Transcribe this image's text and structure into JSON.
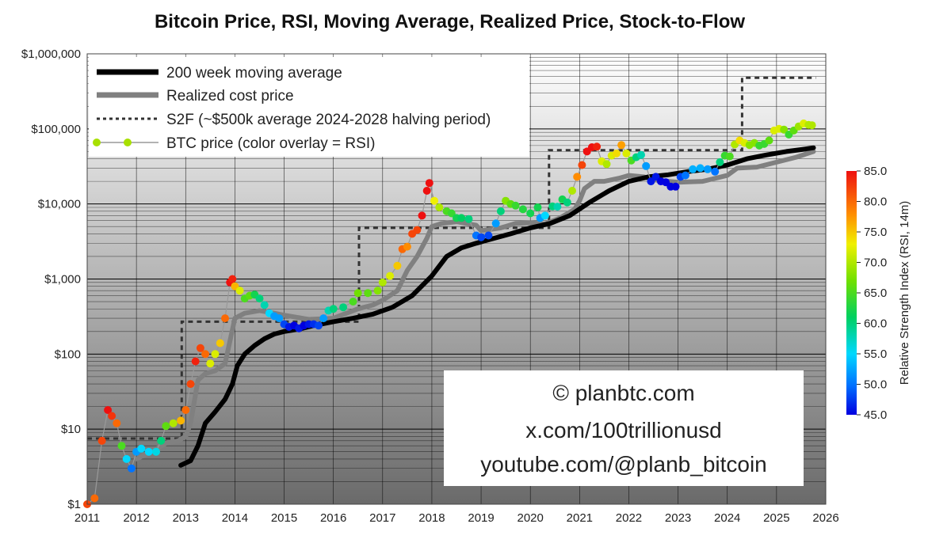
{
  "chart_data": {
    "type": "line",
    "title": "Bitcoin Price, RSI, Moving Average, Realized Price, Stock-to-Flow",
    "y_scale": "log",
    "ylim": [
      1,
      1000000
    ],
    "xlim": [
      2011,
      2026
    ],
    "x_ticks": [
      "2011",
      "2012",
      "2013",
      "2014",
      "2015",
      "2016",
      "2017",
      "2018",
      "2019",
      "2020",
      "2021",
      "2022",
      "2023",
      "2024",
      "2025",
      "2026"
    ],
    "y_ticks": [
      {
        "value": 1,
        "label": "$1"
      },
      {
        "value": 10,
        "label": "$10"
      },
      {
        "value": 100,
        "label": "$100"
      },
      {
        "value": 1000,
        "label": "$1,000"
      },
      {
        "value": 10000,
        "label": "$10,000"
      },
      {
        "value": 100000,
        "label": "$100,000"
      },
      {
        "value": 1000000,
        "label": "$1,000,000"
      }
    ],
    "grid": true,
    "legend_position": "top-left",
    "legend": [
      "200 week moving average",
      "Realized cost price",
      "S2F (~$500k average 2024-2028 halving period)",
      "BTC price (color overlay = RSI)"
    ],
    "colors": {
      "ma200": "#000000",
      "realized": "#808080",
      "s2f": "#333333",
      "btc_line": "#999999"
    },
    "series": [
      {
        "key": "ma200",
        "x": [
          2012.9,
          2013.1,
          2013.25,
          2013.4,
          2013.6,
          2013.8,
          2013.95,
          2014.05,
          2014.2,
          2014.4,
          2014.6,
          2014.8,
          2015.0,
          2015.3,
          2015.6,
          2016.0,
          2016.4,
          2016.8,
          2017.2,
          2017.6,
          2018.0,
          2018.3,
          2018.6,
          2018.9,
          2019.2,
          2019.6,
          2020.0,
          2020.4,
          2020.8,
          2021.2,
          2021.6,
          2022.0,
          2022.4,
          2022.8,
          2023.2,
          2023.6,
          2024.0,
          2024.4,
          2024.8,
          2025.2,
          2025.5,
          2025.75
        ],
        "values": [
          3.3,
          3.8,
          6,
          12,
          17,
          25,
          40,
          70,
          100,
          130,
          160,
          185,
          200,
          215,
          240,
          270,
          300,
          340,
          420,
          600,
          1100,
          2000,
          2600,
          3000,
          3400,
          4000,
          4800,
          5500,
          7000,
          10500,
          15000,
          20000,
          23000,
          24500,
          27000,
          29000,
          33000,
          40000,
          45000,
          50000,
          53000,
          56000
        ]
      },
      {
        "key": "realized",
        "x": [
          2012.0,
          2012.3,
          2012.6,
          2012.85,
          2013.0,
          2013.1,
          2013.25,
          2013.4,
          2013.6,
          2013.8,
          2013.9,
          2014.0,
          2014.2,
          2014.5,
          2014.8,
          2015.0,
          2015.5,
          2016.0,
          2016.5,
          2016.8,
          2017.0,
          2017.3,
          2017.5,
          2017.7,
          2017.9,
          2018.0,
          2018.2,
          2018.5,
          2018.9,
          2019.0,
          2019.4,
          2019.7,
          2020.0,
          2020.3,
          2020.6,
          2020.9,
          2021.0,
          2021.1,
          2021.3,
          2021.5,
          2021.8,
          2022.0,
          2022.3,
          2022.5,
          2022.8,
          2023.0,
          2023.5,
          2024.0,
          2024.2,
          2024.6,
          2025.0,
          2025.4,
          2025.75
        ],
        "values": [
          4,
          5,
          6.5,
          7,
          8,
          12,
          45,
          55,
          60,
          75,
          150,
          300,
          350,
          380,
          350,
          330,
          290,
          300,
          400,
          450,
          520,
          700,
          1300,
          2000,
          3500,
          5000,
          5500,
          5800,
          5200,
          4400,
          4800,
          5500,
          5600,
          5400,
          6500,
          8500,
          11000,
          16000,
          20000,
          20000,
          22000,
          24000,
          23000,
          21000,
          20000,
          19500,
          20000,
          24000,
          30000,
          31000,
          36000,
          42000,
          50000
        ]
      },
      {
        "key": "s2f",
        "x": [
          2011.0,
          2012.92,
          2012.92,
          2016.52,
          2016.52,
          2020.38,
          2020.38,
          2024.3,
          2024.3,
          2025.8
        ],
        "values": [
          7.5,
          7.5,
          270,
          270,
          4800,
          4800,
          52000,
          52000,
          480000,
          480000
        ]
      },
      {
        "key": "btc_price",
        "x": [
          2011.0,
          2011.15,
          2011.3,
          2011.42,
          2011.5,
          2011.6,
          2011.7,
          2011.8,
          2011.9,
          2012.0,
          2012.1,
          2012.25,
          2012.4,
          2012.5,
          2012.6,
          2012.75,
          2012.9,
          2013.0,
          2013.1,
          2013.2,
          2013.3,
          2013.4,
          2013.5,
          2013.6,
          2013.7,
          2013.8,
          2013.9,
          2013.95,
          2014.0,
          2014.1,
          2014.2,
          2014.3,
          2014.4,
          2014.5,
          2014.6,
          2014.7,
          2014.8,
          2014.9,
          2015.0,
          2015.1,
          2015.2,
          2015.3,
          2015.4,
          2015.5,
          2015.6,
          2015.7,
          2015.8,
          2015.9,
          2016.0,
          2016.2,
          2016.4,
          2016.5,
          2016.7,
          2016.9,
          2017.0,
          2017.15,
          2017.3,
          2017.4,
          2017.5,
          2017.6,
          2017.7,
          2017.8,
          2017.9,
          2017.95,
          2018.05,
          2018.15,
          2018.3,
          2018.4,
          2018.5,
          2018.6,
          2018.75,
          2018.9,
          2019.0,
          2019.15,
          2019.3,
          2019.4,
          2019.5,
          2019.6,
          2019.7,
          2019.85,
          2020.0,
          2020.15,
          2020.2,
          2020.3,
          2020.45,
          2020.55,
          2020.65,
          2020.75,
          2020.85,
          2020.95,
          2021.05,
          2021.15,
          2021.25,
          2021.35,
          2021.45,
          2021.55,
          2021.65,
          2021.75,
          2021.85,
          2021.95,
          2022.05,
          2022.15,
          2022.25,
          2022.35,
          2022.45,
          2022.55,
          2022.65,
          2022.75,
          2022.85,
          2022.95,
          2023.05,
          2023.15,
          2023.3,
          2023.45,
          2023.6,
          2023.75,
          2023.85,
          2023.95,
          2024.05,
          2024.15,
          2024.25,
          2024.35,
          2024.45,
          2024.55,
          2024.65,
          2024.75,
          2024.85,
          2024.95,
          2025.05,
          2025.15,
          2025.25,
          2025.35,
          2025.45,
          2025.55,
          2025.65,
          2025.72
        ],
        "values": [
          1,
          1.2,
          7,
          18,
          15,
          12,
          6,
          4,
          3,
          5,
          5.5,
          5,
          5,
          7,
          11,
          12,
          13,
          18,
          40,
          80,
          120,
          100,
          75,
          100,
          140,
          300,
          900,
          1000,
          800,
          700,
          550,
          600,
          620,
          550,
          450,
          350,
          320,
          300,
          250,
          230,
          240,
          220,
          240,
          250,
          250,
          240,
          300,
          380,
          400,
          420,
          500,
          650,
          650,
          700,
          900,
          1100,
          1500,
          2500,
          2700,
          4000,
          4500,
          7000,
          15000,
          19000,
          11000,
          9000,
          8000,
          7500,
          6500,
          6500,
          6300,
          3800,
          3600,
          3800,
          5500,
          8000,
          11000,
          10000,
          9500,
          8500,
          7500,
          9000,
          6500,
          7000,
          9300,
          9200,
          11500,
          10500,
          15000,
          23000,
          33000,
          50000,
          57000,
          58000,
          37000,
          34000,
          44000,
          47000,
          61000,
          47000,
          38000,
          42000,
          45000,
          32000,
          20000,
          23000,
          20000,
          19500,
          17000,
          17000,
          23000,
          24000,
          29000,
          30000,
          29000,
          27000,
          36000,
          44000,
          43000,
          62000,
          70000,
          65000,
          61000,
          65000,
          60000,
          63000,
          70000,
          95000,
          100000,
          98000,
          84000,
          95000,
          108000,
          118000,
          113000,
          112000
        ],
        "rsi": [
          82,
          80,
          82,
          85,
          83,
          80,
          65,
          55,
          50,
          52,
          55,
          55,
          56,
          60,
          66,
          70,
          76,
          80,
          82,
          84,
          82,
          80,
          72,
          72,
          75,
          80,
          85,
          84,
          76,
          72,
          65,
          66,
          62,
          60,
          58,
          55,
          52,
          52,
          48,
          46,
          45,
          46,
          45,
          46,
          47,
          48,
          52,
          58,
          60,
          60,
          65,
          67,
          66,
          68,
          70,
          72,
          75,
          80,
          78,
          82,
          82,
          85,
          86,
          85,
          73,
          70,
          65,
          64,
          62,
          61,
          60,
          50,
          48,
          48,
          52,
          60,
          68,
          66,
          64,
          63,
          62,
          62,
          52,
          55,
          60,
          58,
          62,
          60,
          70,
          78,
          82,
          85,
          85,
          84,
          72,
          70,
          72,
          74,
          77,
          72,
          65,
          60,
          58,
          52,
          46,
          46,
          45,
          45,
          45,
          45,
          48,
          50,
          53,
          53,
          52,
          50,
          60,
          64,
          65,
          70,
          74,
          72,
          68,
          68,
          64,
          64,
          66,
          72,
          72,
          68,
          64,
          66,
          69,
          72,
          70,
          70
        ]
      }
    ],
    "colorbar": {
      "label": "Relative Strength Index (RSI, 14m)",
      "range": [
        45,
        85
      ],
      "ticks": [
        "45.0",
        "50.0",
        "55.0",
        "60.0",
        "65.0",
        "70.0",
        "75.0",
        "80.0",
        "85.0"
      ]
    }
  },
  "watermark": {
    "line1": "© planbtc.com",
    "line2": "x.com/100trillionusd",
    "line3": "youtube.com/@planb_bitcoin"
  }
}
